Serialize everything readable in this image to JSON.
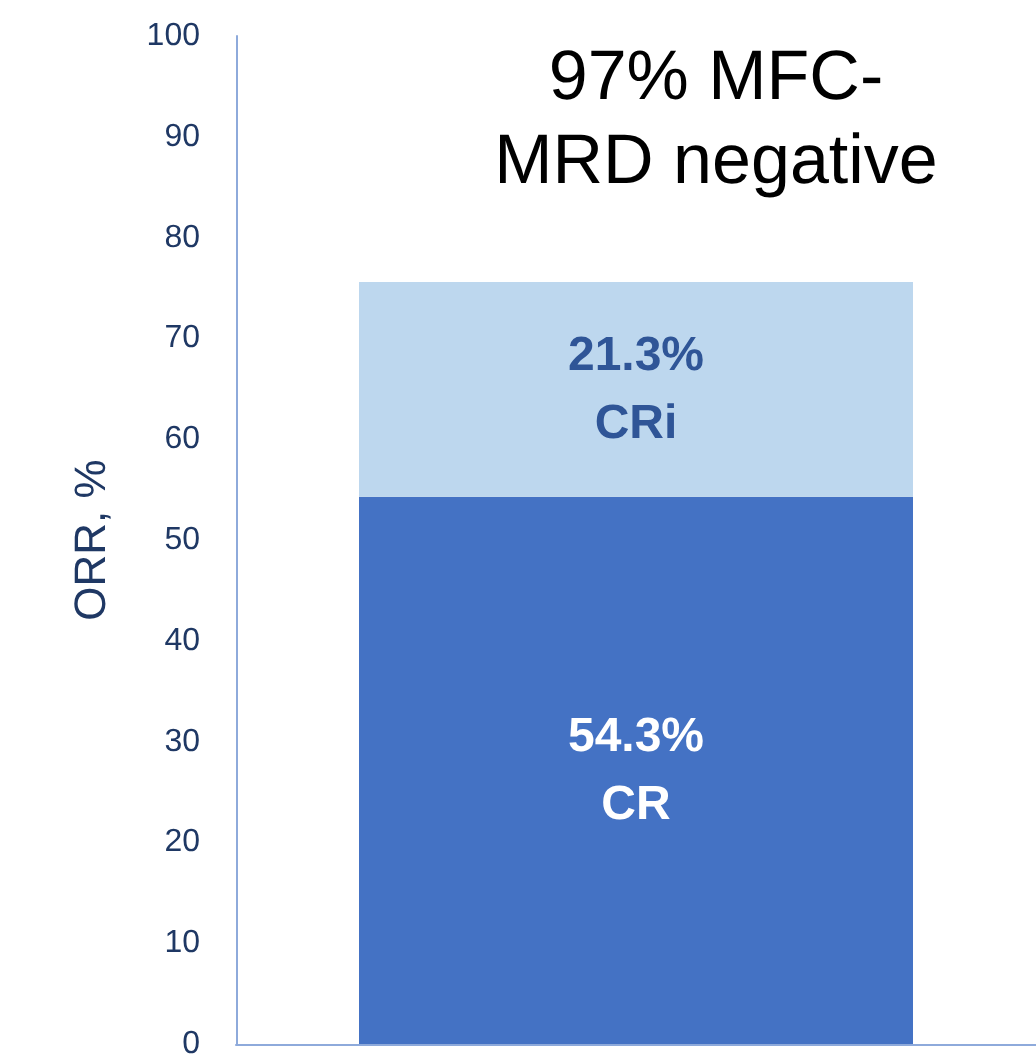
{
  "chart_data": {
    "type": "bar",
    "title": "97% MFC-MRD negative",
    "ylabel": "ORR, %",
    "categories": [
      null
    ],
    "stacked": true,
    "series": [
      {
        "name": "CR",
        "color": "#4472c4",
        "values": [
          54.3
        ],
        "value_labels": [
          "54.3%"
        ]
      },
      {
        "name": "CRi",
        "color": "#bdd7ee",
        "values": [
          21.3
        ],
        "value_labels": [
          "21.3%"
        ]
      }
    ],
    "ylim": [
      0,
      100
    ],
    "yticks": [
      0,
      10,
      20,
      30,
      40,
      50,
      60,
      70,
      80,
      90,
      100
    ],
    "grid": false,
    "legend": false
  }
}
